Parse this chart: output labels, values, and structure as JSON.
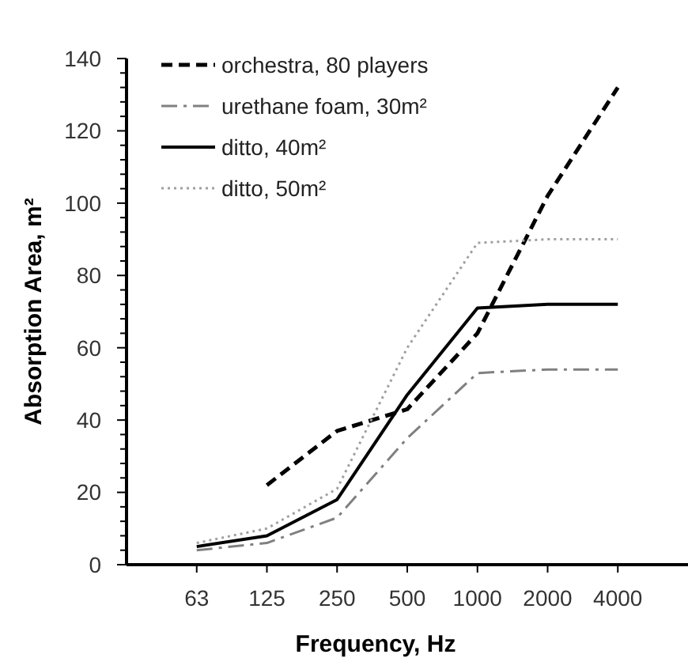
{
  "chart_data": {
    "type": "line",
    "xlabel": "Frequency, Hz",
    "ylabel": "Absorption Area, m²",
    "categories": [
      "63",
      "125",
      "250",
      "500",
      "1000",
      "2000",
      "4000"
    ],
    "series": [
      {
        "name": "orchestra, 80 players",
        "color": "#000000",
        "line_style": "dashed",
        "values": [
          null,
          22,
          37,
          43,
          64,
          102,
          132
        ]
      },
      {
        "name": "urethane foam, 30m²",
        "color": "#808080",
        "line_style": "dashdot",
        "values": [
          4,
          6,
          13,
          35,
          53,
          54,
          54
        ]
      },
      {
        "name": "ditto, 40m²",
        "color": "#000000",
        "line_style": "solid",
        "values": [
          5,
          8,
          18,
          47,
          71,
          72,
          72
        ]
      },
      {
        "name": "ditto, 50m²",
        "color": "#a0a0a0",
        "line_style": "dotted",
        "values": [
          6,
          10,
          21,
          60,
          89,
          90,
          90
        ]
      }
    ],
    "ylim": [
      0,
      140
    ],
    "yticks": [
      0,
      {
        "value": 4,
        "label": null
      },
      {
        "value": 8,
        "label": null
      },
      {
        "value": 12,
        "label": null
      },
      {
        "value": 16,
        "label": null
      },
      20,
      {
        "value": 24,
        "label": null
      },
      {
        "value": 28,
        "label": null
      },
      {
        "value": 32,
        "label": null
      },
      {
        "value": 36,
        "label": null
      },
      40,
      {
        "value": 44,
        "label": null
      },
      {
        "value": 48,
        "label": null
      },
      {
        "value": 52,
        "label": null
      },
      {
        "value": 56,
        "label": null
      },
      60,
      {
        "value": 64,
        "label": null
      },
      {
        "value": 68,
        "label": null
      },
      {
        "value": 72,
        "label": null
      },
      {
        "value": 76,
        "label": null
      },
      80,
      {
        "value": 84,
        "label": null
      },
      {
        "value": 88,
        "label": null
      },
      {
        "value": 92,
        "label": null
      },
      {
        "value": 96,
        "label": null
      },
      100,
      {
        "value": 104,
        "label": null
      },
      {
        "value": 108,
        "label": null
      },
      {
        "value": 112,
        "label": null
      },
      {
        "value": 116,
        "label": null
      },
      120,
      {
        "value": 124,
        "label": null
      },
      {
        "value": 128,
        "label": null
      },
      {
        "value": 132,
        "label": null
      },
      {
        "value": 136,
        "label": null
      },
      140
    ],
    "grid": false,
    "legend": "top left"
  }
}
